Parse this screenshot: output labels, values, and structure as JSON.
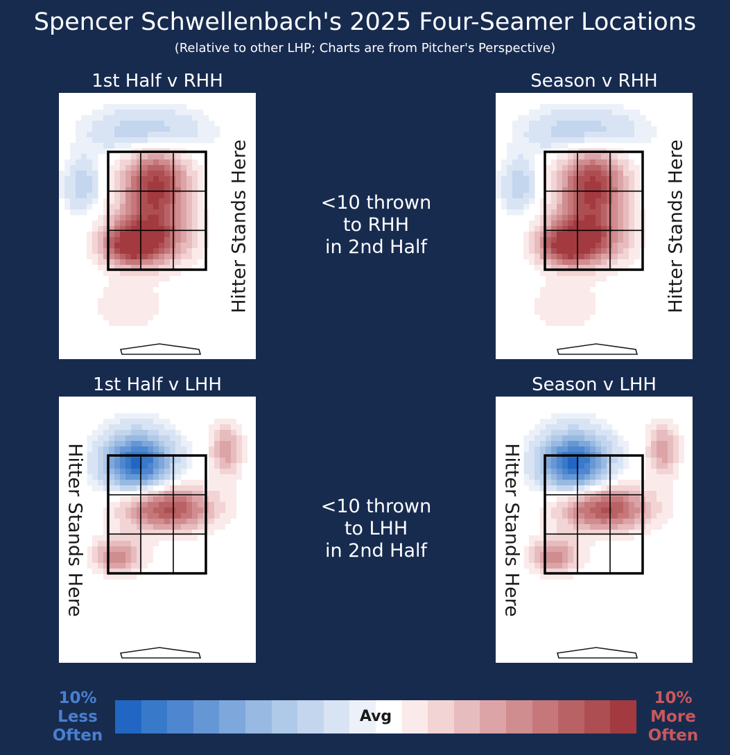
{
  "header": {
    "title": "Spencer Schwellenbach's 2025 Four-Seamer Locations",
    "subtitle": "(Relative to other LHP; Charts are from Pitcher's Perspective)"
  },
  "charts": [
    {
      "id": "p1",
      "title": "1st Half v RHH",
      "hitter_label": "Hitter Stands Here",
      "hitter_side": "right",
      "pattern": "rhh"
    },
    {
      "id": "p2",
      "title": "Season v RHH",
      "hitter_label": "Hitter Stands Here",
      "hitter_side": "right",
      "pattern": "rhh"
    },
    {
      "id": "p3",
      "title": "1st Half v LHH",
      "hitter_label": "Hitter Stands Here",
      "hitter_side": "left",
      "pattern": "lhh"
    },
    {
      "id": "p4",
      "title": "Season v LHH",
      "hitter_label": "Hitter Stands Here",
      "hitter_side": "left",
      "pattern": "lhh"
    }
  ],
  "notes": {
    "rhh": [
      "<10 thrown",
      "to RHH",
      "in 2nd Half"
    ],
    "lhh": [
      "<10 thrown",
      "to LHH",
      "in 2nd Half"
    ]
  },
  "colorbar": {
    "left_label": [
      "10%",
      "Less",
      "Often"
    ],
    "right_label": [
      "10%",
      "More",
      "Often"
    ],
    "center_label": "Avg",
    "left_color": "#4a7fcf",
    "right_color": "#c9585c",
    "colors": [
      "#2166c2",
      "#3879c9",
      "#4e87cf",
      "#6697d5",
      "#7ea8db",
      "#97b9e2",
      "#afcae8",
      "#c4d6ee",
      "#d8e4f4",
      "#ecf1f9",
      "#ffffff",
      "#fbeaea",
      "#f2d4d5",
      "#e7bcbe",
      "#dca4a7",
      "#d08d90",
      "#c5777a",
      "#b96265",
      "#ad4e52",
      "#a33a3f"
    ]
  },
  "chart_data": [
    {
      "type": "heatmap",
      "title": "1st Half v RHH",
      "scale": {
        "min": -10,
        "max": 10,
        "unit": "% relative to other LHP"
      },
      "zones": [
        {
          "center": [
            0.49,
            0.35
          ],
          "radius": [
            0.2,
            0.18
          ],
          "value": 10
        },
        {
          "center": [
            0.45,
            0.55
          ],
          "radius": [
            0.25,
            0.12
          ],
          "value": 8
        },
        {
          "center": [
            0.35,
            0.58
          ],
          "radius": [
            0.15,
            0.08
          ],
          "value": 6
        },
        {
          "center": [
            0.35,
            0.8
          ],
          "radius": [
            0.22,
            0.12
          ],
          "value": 2
        },
        {
          "center": [
            0.45,
            0.15
          ],
          "radius": [
            0.3,
            0.1
          ],
          "value": -4
        },
        {
          "center": [
            0.12,
            0.35
          ],
          "radius": [
            0.1,
            0.12
          ],
          "value": -3
        }
      ]
    },
    {
      "type": "heatmap",
      "title": "Season v RHH",
      "scale": {
        "min": -10,
        "max": 10,
        "unit": "% relative to other LHP"
      },
      "zones": [
        {
          "center": [
            0.49,
            0.35
          ],
          "radius": [
            0.2,
            0.18
          ],
          "value": 10
        },
        {
          "center": [
            0.45,
            0.55
          ],
          "radius": [
            0.25,
            0.12
          ],
          "value": 8
        },
        {
          "center": [
            0.35,
            0.58
          ],
          "radius": [
            0.15,
            0.08
          ],
          "value": 6
        },
        {
          "center": [
            0.35,
            0.8
          ],
          "radius": [
            0.22,
            0.12
          ],
          "value": 2
        },
        {
          "center": [
            0.45,
            0.15
          ],
          "radius": [
            0.3,
            0.1
          ],
          "value": -4
        },
        {
          "center": [
            0.12,
            0.35
          ],
          "radius": [
            0.1,
            0.12
          ],
          "value": -3
        }
      ]
    },
    {
      "type": "heatmap",
      "title": "1st Half v LHH",
      "scale": {
        "min": -10,
        "max": 10,
        "unit": "% relative to other LHP"
      },
      "zones": [
        {
          "center": [
            0.4,
            0.25
          ],
          "radius": [
            0.2,
            0.13
          ],
          "value": -10
        },
        {
          "center": [
            0.55,
            0.42
          ],
          "radius": [
            0.28,
            0.1
          ],
          "value": 9
        },
        {
          "center": [
            0.3,
            0.6
          ],
          "radius": [
            0.15,
            0.08
          ],
          "value": 6
        },
        {
          "center": [
            0.85,
            0.2
          ],
          "radius": [
            0.1,
            0.12
          ],
          "value": 5
        },
        {
          "center": [
            0.45,
            0.82
          ],
          "radius": [
            0.25,
            0.1
          ],
          "value": 1
        }
      ]
    },
    {
      "type": "heatmap",
      "title": "Season v LHH",
      "scale": {
        "min": -10,
        "max": 10,
        "unit": "% relative to other LHP"
      },
      "zones": [
        {
          "center": [
            0.4,
            0.25
          ],
          "radius": [
            0.2,
            0.13
          ],
          "value": -10
        },
        {
          "center": [
            0.55,
            0.42
          ],
          "radius": [
            0.28,
            0.1
          ],
          "value": 9
        },
        {
          "center": [
            0.3,
            0.6
          ],
          "radius": [
            0.15,
            0.08
          ],
          "value": 6
        },
        {
          "center": [
            0.85,
            0.2
          ],
          "radius": [
            0.1,
            0.12
          ],
          "value": 5
        },
        {
          "center": [
            0.45,
            0.82
          ],
          "radius": [
            0.25,
            0.1
          ],
          "value": 1
        }
      ]
    }
  ]
}
